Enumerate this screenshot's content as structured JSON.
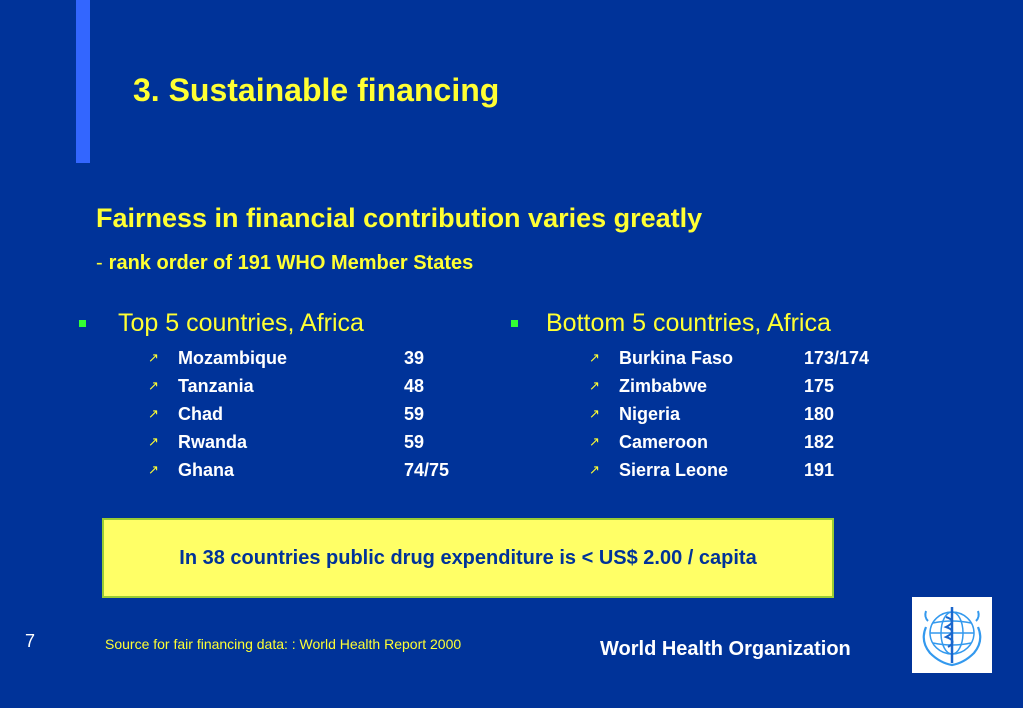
{
  "title": "3.  Sustainable financing",
  "subheading": "Fairness in financial contribution varies greatly",
  "subline": {
    "dash": "-",
    "text": "rank order of 191 WHO Member States"
  },
  "left_column": {
    "title": "Top 5 countries, Africa",
    "rows": [
      {
        "name": "Mozambique",
        "rank": "39"
      },
      {
        "name": "Tanzania",
        "rank": "48"
      },
      {
        "name": "Chad",
        "rank": "59"
      },
      {
        "name": "Rwanda",
        "rank": "59"
      },
      {
        "name": "Ghana",
        "rank": "74/75"
      }
    ]
  },
  "right_column": {
    "title": "Bottom 5 countries, Africa",
    "rows": [
      {
        "name": "Burkina Faso",
        "rank": "173/174"
      },
      {
        "name": "Zimbabwe",
        "rank": "175"
      },
      {
        "name": "Nigeria",
        "rank": "180"
      },
      {
        "name": "Cameroon",
        "rank": "182"
      },
      {
        "name": "Sierra Leone",
        "rank": "191"
      }
    ]
  },
  "highlight": "In 38 countries public drug expenditure is < US$ 2.00 / capita",
  "page_number": "7",
  "source": "Source for fair financing data: : World Health Report 2000",
  "organization": "World Health Organization",
  "icons": {
    "bullet": "green-square-bullet",
    "sub_bullet": "arrow-up-right-icon",
    "logo": "who-emblem"
  },
  "colors": {
    "background": "#003399",
    "accent": "#3366ff",
    "heading": "#ffff33",
    "box": "#ffff66"
  }
}
